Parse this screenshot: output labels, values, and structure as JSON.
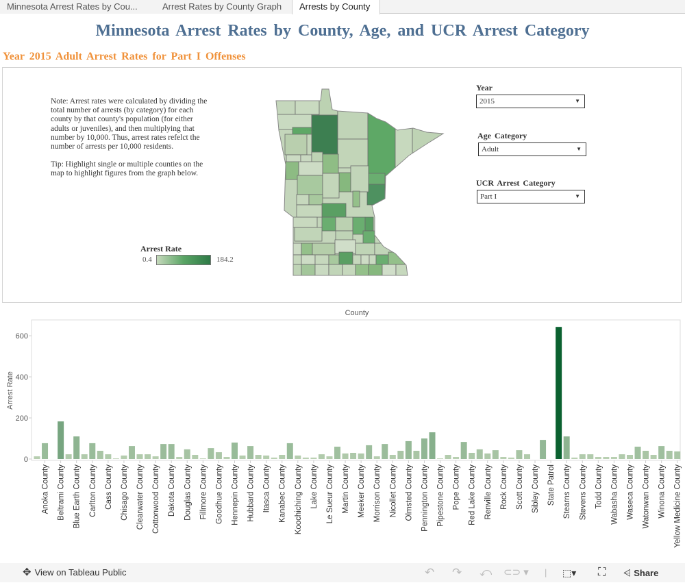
{
  "tabs": [
    {
      "label": "Minnesota Arrest Rates by Cou..."
    },
    {
      "label": "Arrest Rates by County Graph"
    },
    {
      "label": "Arrests by County",
      "active": true
    }
  ],
  "title": "Minnesota Arrest Rates by County, Age, and UCR Arrest Category",
  "subtitle": "Year 2015 Adult Arrest Rates for Part I Offenses",
  "note": {
    "paragraph1": "Note: Arrest rates were calculated by dividing the total number of arrests (by category) for each county by that county's population (for either adults or juveniles), and then multiplying that number by 10,000. Thus, arrest rates refelct the number of arrests per 10,000 residents.",
    "paragraph2": "Tip: Highlight single or multiple counties on the map to highlight figures from the graph below."
  },
  "legend": {
    "title": "Arrest Rate",
    "min": "0.4",
    "max": "184.2",
    "colors": [
      "#c6d9bc",
      "#2e7a47"
    ]
  },
  "filters": {
    "year": {
      "label": "Year",
      "value": "2015"
    },
    "age": {
      "label": "Age Category",
      "value": "Adult"
    },
    "ucr": {
      "label": "UCR Arrest Category",
      "value": "Part I"
    }
  },
  "chart_data": {
    "type": "bar",
    "title": "County",
    "xlabel": "",
    "ylabel": "Arrest Rate",
    "ylim": [
      0,
      677
    ],
    "yticks": [
      "0",
      "200",
      "400",
      "600"
    ],
    "grid": false,
    "color_scale": [
      "#c3d6b9",
      "#0b6130"
    ],
    "categories": [
      "",
      "Anoka County",
      "",
      "Beltrami County",
      "",
      "Blue Earth County",
      "",
      "Carlton County",
      "",
      "Cass County",
      "",
      "Chisago County",
      "",
      "Clearwater County",
      "",
      "Cottonwood County",
      "",
      "Dakota County",
      "",
      "Douglas County",
      "",
      "Fillmore County",
      "",
      "Goodhue County",
      "",
      "Hennepin County",
      "",
      "Hubbard County",
      "",
      "Itasca County",
      "",
      "Kanabec County",
      "",
      "Koochiching County",
      "",
      "Lake County",
      "",
      "Le Sueur County",
      "",
      "Martin County",
      "",
      "Meeker County",
      "",
      "Morrison County",
      "",
      "Nicollet County",
      "",
      "Olmsted County",
      "",
      "Pennington County",
      "",
      "Pipestone County",
      "",
      "Pope County",
      "",
      "Red Lake County",
      "",
      "Renville County",
      "",
      "Rock County",
      "",
      "Scott County",
      "",
      "Sibley County",
      "",
      "State Patrol",
      "",
      "Stearns County",
      "",
      "Stevens County",
      "",
      "Todd County",
      "",
      "Wabasha County",
      "",
      "Waseca County",
      "",
      "Watonwan County",
      "",
      "Winona County",
      "",
      "Yellow Medicine County"
    ],
    "values": [
      13,
      77,
      null,
      183,
      23,
      110,
      23,
      77,
      40,
      23,
      3,
      17,
      63,
      23,
      23,
      13,
      73,
      73,
      10,
      47,
      20,
      3,
      53,
      33,
      10,
      80,
      17,
      63,
      20,
      17,
      7,
      20,
      77,
      17,
      7,
      7,
      23,
      13,
      60,
      27,
      30,
      27,
      67,
      13,
      73,
      20,
      40,
      87,
      40,
      100,
      130,
      3,
      20,
      10,
      83,
      30,
      47,
      27,
      43,
      10,
      7,
      43,
      23,
      null,
      93,
      null,
      643,
      110,
      7,
      23,
      23,
      10,
      10,
      10,
      23,
      20,
      60,
      40,
      20,
      63,
      40,
      37
    ]
  },
  "footer": {
    "view_label": "View on Tableau Public",
    "share_label": "Share"
  }
}
